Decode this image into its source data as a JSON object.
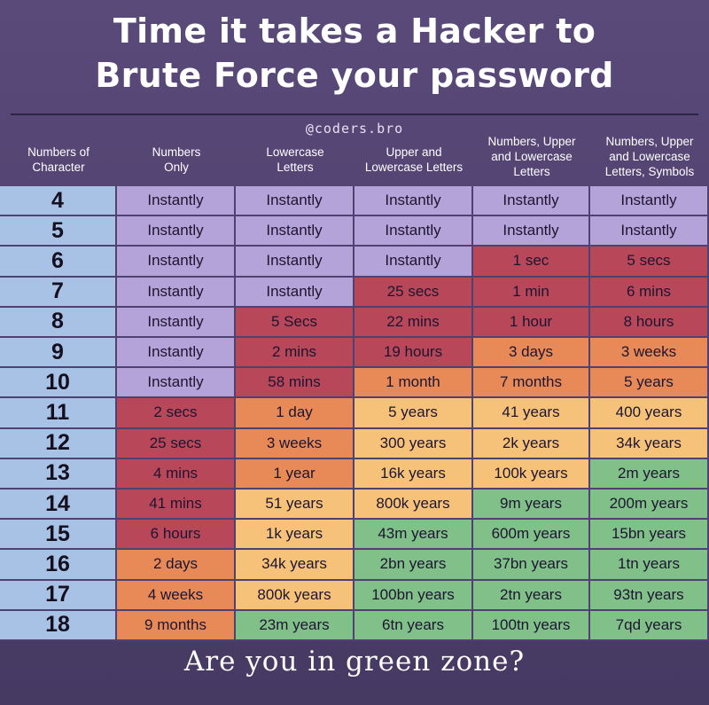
{
  "title_line1": "Time it takes a Hacker to",
  "title_line2": "Brute Force your password",
  "handle": "@coders.bro",
  "footer": "Are you in green zone?",
  "colors": {
    "background": "#54466f",
    "Instantly": "#b4a3d8",
    "red": "#b9475a",
    "orange": "#e88a58",
    "yellow": "#f6c27a",
    "green": "#82c08a",
    "index_column": "#a8c2e6"
  },
  "chart_data": {
    "type": "table",
    "columns": [
      "Numbers of Character",
      "Numbers Only",
      "Lowercase Letters",
      "Upper and Lowercase Letters",
      "Numbers, Upper and Lowercase Letters",
      "Numbers, Upper and Lowercase Letters, Symbols"
    ],
    "column_lines": [
      [
        "Numbers of",
        "Character"
      ],
      [
        "Numbers",
        "Only"
      ],
      [
        "Lowercase",
        "Letters"
      ],
      [
        "Upper and",
        "Lowercase Letters"
      ],
      [
        "Numbers, Upper",
        "and Lowercase",
        "Letters"
      ],
      [
        "Numbers, Upper",
        "and Lowercase",
        "Letters, Symbols"
      ]
    ],
    "rows": [
      {
        "chars": "4",
        "cells": [
          "Instantly",
          "Instantly",
          "Instantly",
          "Instantly",
          "Instantly"
        ],
        "zones": [
          "purple",
          "purple",
          "purple",
          "purple",
          "purple"
        ]
      },
      {
        "chars": "5",
        "cells": [
          "Instantly",
          "Instantly",
          "Instantly",
          "Instantly",
          "Instantly"
        ],
        "zones": [
          "purple",
          "purple",
          "purple",
          "purple",
          "purple"
        ]
      },
      {
        "chars": "6",
        "cells": [
          "Instantly",
          "Instantly",
          "Instantly",
          "1 sec",
          "5 secs"
        ],
        "zones": [
          "purple",
          "purple",
          "purple",
          "red",
          "red"
        ]
      },
      {
        "chars": "7",
        "cells": [
          "Instantly",
          "Instantly",
          "25 secs",
          "1 min",
          "6 mins"
        ],
        "zones": [
          "purple",
          "purple",
          "red",
          "red",
          "red"
        ]
      },
      {
        "chars": "8",
        "cells": [
          "Instantly",
          "5 Secs",
          "22 mins",
          "1 hour",
          "8 hours"
        ],
        "zones": [
          "purple",
          "red",
          "red",
          "red",
          "red"
        ]
      },
      {
        "chars": "9",
        "cells": [
          "Instantly",
          "2 mins",
          "19 hours",
          "3 days",
          "3 weeks"
        ],
        "zones": [
          "purple",
          "red",
          "red",
          "orange",
          "orange"
        ]
      },
      {
        "chars": "10",
        "cells": [
          "Instantly",
          "58 mins",
          "1 month",
          "7 months",
          "5 years"
        ],
        "zones": [
          "purple",
          "red",
          "orange",
          "orange",
          "orange"
        ]
      },
      {
        "chars": "11",
        "cells": [
          "2 secs",
          "1 day",
          "5 years",
          "41 years",
          "400 years"
        ],
        "zones": [
          "red",
          "orange",
          "yellow",
          "yellow",
          "yellow"
        ]
      },
      {
        "chars": "12",
        "cells": [
          "25 secs",
          "3 weeks",
          "300 years",
          "2k years",
          "34k years"
        ],
        "zones": [
          "red",
          "orange",
          "yellow",
          "yellow",
          "yellow"
        ]
      },
      {
        "chars": "13",
        "cells": [
          "4 mins",
          "1 year",
          "16k years",
          "100k years",
          "2m years"
        ],
        "zones": [
          "red",
          "orange",
          "yellow",
          "yellow",
          "green"
        ]
      },
      {
        "chars": "14",
        "cells": [
          "41 mins",
          "51 years",
          "800k years",
          "9m years",
          "200m years"
        ],
        "zones": [
          "red",
          "yellow",
          "yellow",
          "green",
          "green"
        ]
      },
      {
        "chars": "15",
        "cells": [
          "6 hours",
          "1k years",
          "43m years",
          "600m years",
          "15bn years"
        ],
        "zones": [
          "red",
          "yellow",
          "green",
          "green",
          "green"
        ]
      },
      {
        "chars": "16",
        "cells": [
          "2 days",
          "34k years",
          "2bn years",
          "37bn years",
          "1tn years"
        ],
        "zones": [
          "orange",
          "yellow",
          "green",
          "green",
          "green"
        ]
      },
      {
        "chars": "17",
        "cells": [
          "4 weeks",
          "800k years",
          "100bn years",
          "2tn years",
          "93tn years"
        ],
        "zones": [
          "orange",
          "yellow",
          "green",
          "green",
          "green"
        ]
      },
      {
        "chars": "18",
        "cells": [
          "9 months",
          "23m years",
          "6tn years",
          "100tn years",
          "7qd years"
        ],
        "zones": [
          "orange",
          "green",
          "green",
          "green",
          "green"
        ]
      }
    ]
  }
}
